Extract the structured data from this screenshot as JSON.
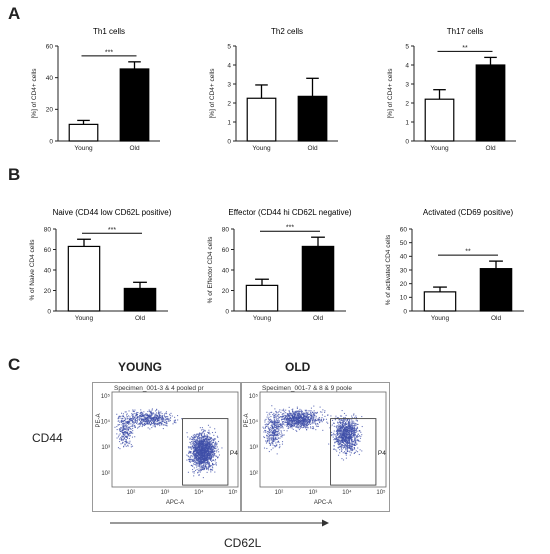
{
  "panels": {
    "a": "A",
    "b": "B",
    "c": "C"
  },
  "colors": {
    "young_fill": "#ffffff",
    "old_fill": "#000000",
    "flow_dots": "#3f4fa8"
  },
  "chart_data": [
    {
      "type": "bar",
      "title": "Th1 cells",
      "ylabel": "[%] of CD4+ cells",
      "categories": [
        "Young",
        "Old"
      ],
      "values": [
        10.5,
        45.5
      ],
      "errors": [
        2.5,
        4.5
      ],
      "ylim": [
        0,
        60
      ],
      "yticks": [
        "0",
        "20",
        "40",
        "60"
      ],
      "significance": "***",
      "grid": false
    },
    {
      "type": "bar",
      "title": "Th2 cells",
      "ylabel": "[%] of CD4+ cells",
      "categories": [
        "Young",
        "Old"
      ],
      "values": [
        2.25,
        2.35
      ],
      "errors": [
        0.7,
        0.95
      ],
      "ylim": [
        0,
        5
      ],
      "yticks": [
        "0",
        "1",
        "2",
        "3",
        "4",
        "5"
      ],
      "significance": "",
      "grid": false
    },
    {
      "type": "bar",
      "title": "Th17 cells",
      "ylabel": "[%] of CD4+ cells",
      "categories": [
        "Young",
        "Old"
      ],
      "values": [
        2.2,
        4.0
      ],
      "errors": [
        0.5,
        0.4
      ],
      "ylim": [
        0,
        5
      ],
      "yticks": [
        "0",
        "1",
        "2",
        "3",
        "4",
        "5"
      ],
      "significance": "**",
      "grid": false
    },
    {
      "type": "bar",
      "title": "Naive (CD44 low CD62L positive)",
      "ylabel": "% of Naive CD4 cells",
      "categories": [
        "Young",
        "Old"
      ],
      "values": [
        63,
        22
      ],
      "errors": [
        7,
        6
      ],
      "ylim": [
        0,
        80
      ],
      "yticks": [
        "0",
        "20",
        "40",
        "60",
        "80"
      ],
      "significance": "***",
      "grid": false
    },
    {
      "type": "bar",
      "title": "Effector (CD44 hi CD62L negative)",
      "ylabel": "% of Effector CD4 cells",
      "categories": [
        "Young",
        "Old"
      ],
      "values": [
        25,
        63
      ],
      "errors": [
        6,
        9
      ],
      "ylim": [
        0,
        80
      ],
      "yticks": [
        "0",
        "20",
        "40",
        "60",
        "80"
      ],
      "significance": "***",
      "grid": false
    },
    {
      "type": "bar",
      "title": "Activated (CD69 positive)",
      "ylabel": "% of activated CD4 cells",
      "categories": [
        "Young",
        "Old"
      ],
      "values": [
        14,
        31
      ],
      "errors": [
        3.5,
        5.5
      ],
      "ylim": [
        0,
        60
      ],
      "yticks": [
        "0",
        "10",
        "20",
        "30",
        "40",
        "50",
        "60"
      ],
      "significance": "**",
      "grid": false
    }
  ],
  "flow": {
    "young_title": "YOUNG",
    "old_title": "OLD",
    "y_marker": "CD44",
    "x_marker": "CD62L",
    "plots": [
      {
        "specimen": "Specimen_001-3 & 4 pooled pr",
        "x_axis": "APC-A",
        "y_axis": "PE-A",
        "gate": "P4",
        "x_ticks": [
          "10²",
          "10³",
          "10⁴",
          "10⁵"
        ],
        "y_ticks": [
          "10²",
          "10³",
          "10⁴",
          "10⁵"
        ]
      },
      {
        "specimen": "Specimen_001-7 & 8 & 9 poole",
        "x_axis": "APC-A",
        "y_axis": "PE-A",
        "gate": "P4",
        "x_ticks": [
          "10²",
          "10³",
          "10⁴",
          "10⁵"
        ],
        "y_ticks": [
          "10²",
          "10³",
          "10⁴",
          "10⁵"
        ]
      }
    ]
  }
}
